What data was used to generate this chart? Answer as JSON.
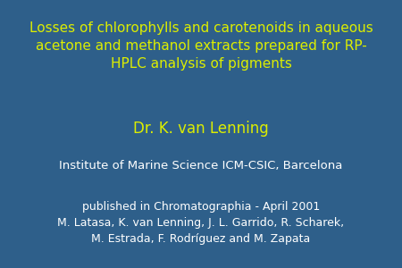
{
  "background_color": "#2e5f8a",
  "title_text": "Losses of chlorophylls and carotenoids in aqueous\nacetone and methanol extracts prepared for RP-\nHPLC analysis of pigments",
  "title_color": "#ddee00",
  "title_fontsize": 11.0,
  "author_text": "Dr. K. van Lenning",
  "author_color": "#ddee00",
  "author_fontsize": 12.0,
  "institute_text": "Institute of Marine Science ICM-CSIC, Barcelona",
  "institute_color": "#ffffff",
  "institute_fontsize": 9.5,
  "pub_text": "published in Chromatographia - April 2001\nM. Latasa, K. van Lenning, J. L. Garrido, R. Scharek,\nM. Estrada, F. Rodríguez and M. Zapata",
  "pub_color": "#ffffff",
  "pub_fontsize": 9.0
}
